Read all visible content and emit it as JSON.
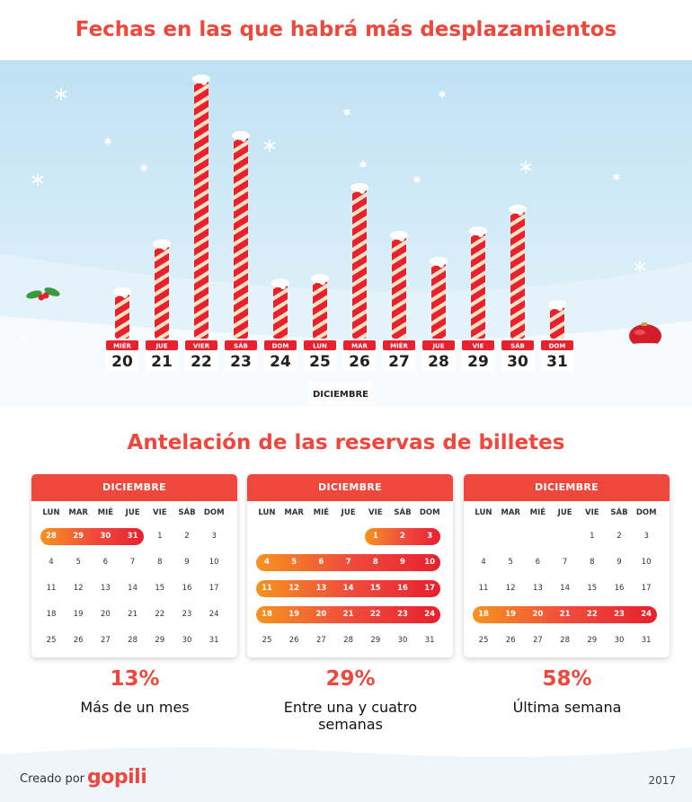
{
  "header": {
    "title": "Fechas en las que habrá más desplazamientos"
  },
  "chart_data": {
    "type": "bar",
    "title": "Fechas en las que habrá más desplazamientos",
    "xlabel": "DICIEMBRE",
    "ylabel": "",
    "categories": [
      "20",
      "21",
      "22",
      "23",
      "24",
      "25",
      "26",
      "27",
      "28",
      "29",
      "30",
      "31"
    ],
    "weekdays": [
      "MIÉR",
      "JUE",
      "VIER",
      "SÁB",
      "DOM",
      "LUN",
      "MAR",
      "MIÉR",
      "JUE",
      "VIE",
      "SÁB",
      "DOM"
    ],
    "values": [
      55,
      110,
      300,
      235,
      65,
      70,
      175,
      120,
      90,
      125,
      150,
      40
    ],
    "ylim": [
      0,
      300
    ],
    "grid": false,
    "colors": {
      "red": "#e8212e",
      "stripe": "#fbe3c6",
      "cap": "#ffffff"
    }
  },
  "section2": {
    "title": "Antelación de las reservas de billetes",
    "calendars": [
      {
        "month": "DICIEMBRE",
        "days": [
          "LUN",
          "MAR",
          "MIÉ",
          "JUE",
          "VIE",
          "SÁB",
          "DOM"
        ],
        "weeks": [
          [
            "28",
            "29",
            "30",
            "31",
            "1",
            "2",
            "3"
          ],
          [
            "4",
            "5",
            "6",
            "7",
            "8",
            "9",
            "10"
          ],
          [
            "11",
            "12",
            "13",
            "14",
            "15",
            "16",
            "17"
          ],
          [
            "18",
            "19",
            "20",
            "21",
            "22",
            "23",
            "24"
          ],
          [
            "25",
            "26",
            "27",
            "28",
            "29",
            "30",
            "31"
          ]
        ],
        "highlight": [
          [
            0,
            0,
            3
          ]
        ],
        "percent": "13%",
        "label": "Más de un mes"
      },
      {
        "month": "DICIEMBRE",
        "days": [
          "LUN",
          "MAR",
          "MIÉ",
          "JUE",
          "VIE",
          "SÁB",
          "DOM"
        ],
        "weeks": [
          [
            "",
            "",
            "",
            "",
            "1",
            "2",
            "3"
          ],
          [
            "4",
            "5",
            "6",
            "7",
            "8",
            "9",
            "10"
          ],
          [
            "11",
            "12",
            "13",
            "14",
            "15",
            "16",
            "17"
          ],
          [
            "18",
            "19",
            "20",
            "21",
            "22",
            "23",
            "24"
          ],
          [
            "25",
            "26",
            "27",
            "28",
            "29",
            "30",
            "31"
          ]
        ],
        "highlight": [
          [
            0,
            4,
            6
          ],
          [
            1,
            0,
            6
          ],
          [
            2,
            0,
            6
          ],
          [
            3,
            0,
            6
          ]
        ],
        "percent": "29%",
        "label": "Entre una y cuatro semanas"
      },
      {
        "month": "DICIEMBRE",
        "days": [
          "LUN",
          "MAR",
          "MIÉ",
          "JUE",
          "VIE",
          "SÁB",
          "DOM"
        ],
        "weeks": [
          [
            "",
            "",
            "",
            "",
            "1",
            "2",
            "3"
          ],
          [
            "4",
            "5",
            "6",
            "7",
            "8",
            "9",
            "10"
          ],
          [
            "11",
            "12",
            "13",
            "14",
            "15",
            "16",
            "17"
          ],
          [
            "18",
            "19",
            "20",
            "21",
            "22",
            "23",
            "24"
          ],
          [
            "25",
            "26",
            "27",
            "28",
            "29",
            "30",
            "31"
          ]
        ],
        "highlight": [
          [
            3,
            0,
            6
          ]
        ],
        "percent": "58%",
        "label": "Última semana"
      }
    ]
  },
  "footer": {
    "created_by": "Creado por",
    "logo": "gopili",
    "year": "2017"
  }
}
